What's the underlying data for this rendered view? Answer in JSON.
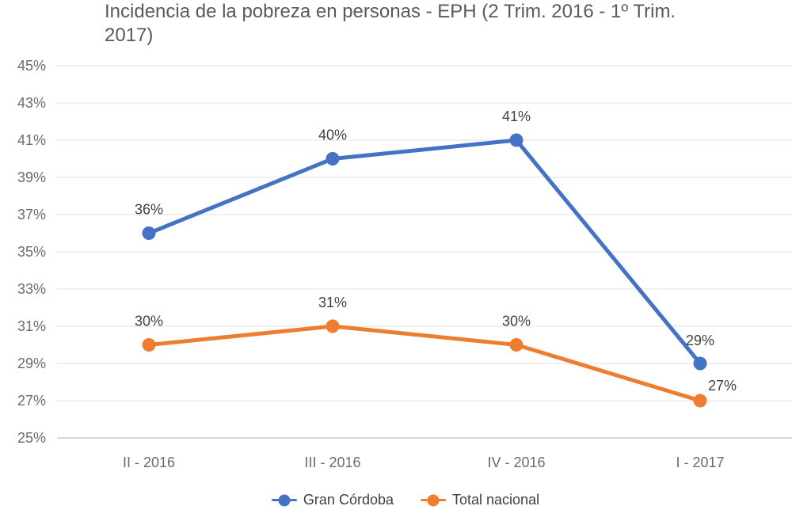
{
  "header": {
    "title_lines": [
      "Incidencia de la pobreza en personas - EPH (2 Trim. 2016 - 1º Trim.",
      "2017)"
    ]
  },
  "chart_data": {
    "type": "line",
    "title": "Incidencia de la pobreza en personas - EPH (2 Trim. 2016 - 1º Trim. 2017)",
    "categories": [
      "II - 2016",
      "III - 2016",
      "IV - 2016",
      "I - 2017"
    ],
    "series": [
      {
        "name": "Gran Córdoba",
        "color": "#4472C4",
        "values": [
          36,
          40,
          41,
          29
        ],
        "data_labels": [
          "36%",
          "40%",
          "41%",
          "29%"
        ],
        "label_offsets": [
          [
            0,
            0
          ],
          [
            0,
            0
          ],
          [
            0,
            0
          ],
          [
            0,
            1
          ]
        ]
      },
      {
        "name": "Total nacional",
        "color": "#ED7D31",
        "values": [
          30,
          31,
          30,
          27
        ],
        "data_labels": [
          "30%",
          "31%",
          "30%",
          "27%"
        ],
        "label_offsets": [
          [
            0,
            0
          ],
          [
            0,
            0
          ],
          [
            0,
            0
          ],
          [
            28,
            11
          ]
        ]
      }
    ],
    "xlabel": "",
    "ylabel": "",
    "ylim": [
      25,
      45
    ],
    "ytick_step": 2,
    "ytick_labels": [
      "25%",
      "27%",
      "29%",
      "31%",
      "33%",
      "35%",
      "37%",
      "39%",
      "41%",
      "43%",
      "45%"
    ],
    "grid": true,
    "legend_position": "bottom",
    "marker": "circle",
    "colors": {
      "gridline": "#E6E6E6",
      "axis_line": "#C9C9C9",
      "tick_label": "#6B6B6B",
      "data_label": "#404040",
      "title": "#5A5A5A",
      "legend_label": "#404040",
      "background": "#FFFFFF"
    }
  }
}
